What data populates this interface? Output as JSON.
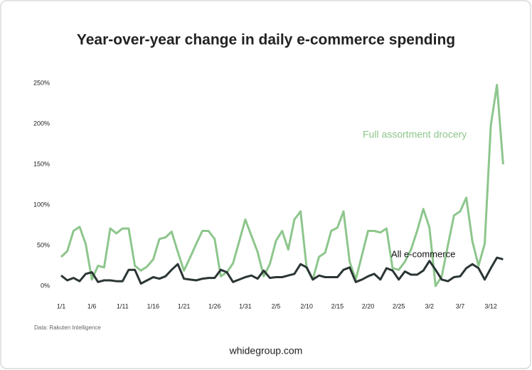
{
  "chart_data": {
    "type": "line",
    "title": "Year-over-year change in daily e-commerce spending",
    "source": "Data: Rakuten Intelligence",
    "footer": "whidegroup.com",
    "categories": [
      "1/1",
      null,
      null,
      null,
      null,
      "1/6",
      null,
      null,
      null,
      null,
      "1/11",
      null,
      null,
      null,
      null,
      "1/16",
      null,
      null,
      null,
      null,
      "1/21",
      null,
      null,
      null,
      null,
      "1/26",
      null,
      null,
      null,
      null,
      "1/31",
      null,
      null,
      null,
      null,
      "2/5",
      null,
      null,
      null,
      null,
      "2/10",
      null,
      null,
      null,
      null,
      "2/15",
      null,
      null,
      null,
      null,
      "2/20",
      null,
      null,
      null,
      null,
      "2/25",
      null,
      null,
      null,
      null,
      "3/2",
      null,
      null,
      null,
      null,
      "3/7",
      null,
      null,
      null,
      null,
      "3/12",
      null,
      null
    ],
    "series": [
      {
        "name": "Full assortment drocery",
        "color": "#8dc68c",
        "values": [
          36,
          43,
          68,
          73,
          52,
          8,
          25,
          23,
          71,
          65,
          71,
          71,
          25,
          19,
          24,
          33,
          58,
          60,
          67,
          42,
          19,
          35,
          52,
          68,
          68,
          58,
          12,
          17,
          28,
          55,
          82,
          62,
          42,
          12,
          27,
          56,
          68,
          45,
          82,
          92,
          22,
          8,
          36,
          41,
          68,
          72,
          92,
          30,
          8,
          38,
          68,
          68,
          66,
          71,
          22,
          20,
          30,
          45,
          68,
          95,
          72,
          0,
          12,
          50,
          87,
          92,
          109,
          55,
          25,
          52,
          198,
          248,
          150
        ]
      },
      {
        "name": "All e-commerce",
        "color": "#2b3535",
        "values": [
          13,
          7,
          10,
          6,
          15,
          17,
          5,
          7,
          7,
          6,
          6,
          20,
          20,
          3,
          7,
          11,
          9,
          12,
          20,
          27,
          9,
          8,
          7,
          9,
          10,
          10,
          20,
          17,
          5,
          8,
          11,
          13,
          9,
          19,
          10,
          11,
          11,
          13,
          15,
          27,
          23,
          8,
          13,
          11,
          11,
          11,
          20,
          23,
          5,
          8,
          12,
          15,
          8,
          22,
          19,
          8,
          18,
          14,
          14,
          19,
          31,
          20,
          8,
          6,
          11,
          12,
          22,
          27,
          22,
          8,
          22,
          35,
          33
        ]
      }
    ],
    "ylim": [
      0,
      250
    ],
    "yticks": [
      {
        "value": 0,
        "label": "0%"
      },
      {
        "value": 50,
        "label": "50%"
      },
      {
        "value": 100,
        "label": "100%"
      },
      {
        "value": 150,
        "label": "150%"
      },
      {
        "value": 200,
        "label": "200%"
      },
      {
        "value": 250,
        "label": "250%"
      }
    ],
    "grid": false
  }
}
